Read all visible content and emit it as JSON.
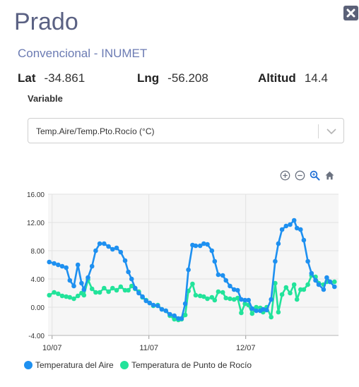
{
  "station": {
    "title": "Prado",
    "subtitle": "Convencional - INUMET",
    "lat_label": "Lat",
    "lat_value": "-34.861",
    "lng_label": "Lng",
    "lng_value": "-56.208",
    "alt_label": "Altitud",
    "alt_value": "14.4"
  },
  "variable": {
    "label": "Variable",
    "selected": "Temp.Aire/Temp.Pto.Rocío (°C)"
  },
  "toolbar": {
    "icons": [
      "zoom-in-icon",
      "zoom-out-icon",
      "magnifier-icon",
      "home-icon"
    ]
  },
  "colors": {
    "air": "#1e90f0",
    "dew": "#22e39a",
    "title": "#5a6183",
    "subtitle": "#6b7bb3"
  },
  "chart_data": {
    "type": "line",
    "title": "",
    "xlabel": "",
    "ylabel": "",
    "ylim": [
      -4,
      16
    ],
    "yticks": [
      "16.00",
      "12.00",
      "8.00",
      "4.00",
      "0.00",
      "-4.00"
    ],
    "xticks": [
      {
        "label": "10/07",
        "x": 0
      },
      {
        "label": "11/07",
        "x": 24
      },
      {
        "label": "12/07",
        "x": 48
      }
    ],
    "xlim": [
      -1,
      71
    ],
    "grid": true,
    "legend": "bottom",
    "series": [
      {
        "name": "Temperatura del Aire",
        "x": [
          -0.7,
          0.5,
          1.5,
          2.5,
          3.5,
          4.4,
          5.4,
          6.4,
          7.3,
          7.9,
          8.9,
          9.9,
          10.8,
          11.8,
          12.9,
          14.0,
          15.0,
          16.0,
          17.0,
          18.1,
          18.9,
          19.7,
          20.6,
          21.5,
          22.4,
          23.3,
          24.2,
          25.1,
          26.2,
          27.2,
          28.2,
          29.2,
          30.3,
          31.3,
          32.1,
          33.0,
          33.8,
          34.8,
          35.6,
          36.7,
          37.6,
          38.5,
          39.6,
          40.3,
          41.2,
          42.3,
          43.1,
          44.1,
          45.1,
          46.0,
          46.9,
          47.8,
          48.7,
          49.6,
          50.6,
          51.6,
          52.3,
          53.2,
          54.3,
          55.3,
          56.1,
          57.0,
          58.0,
          59.0,
          60.0,
          60.7,
          61.6,
          62.4,
          63.4,
          64.3,
          65.3,
          66.1,
          67.3,
          68.1,
          68.9,
          70.0
        ],
        "values": [
          6.4,
          6.2,
          6.0,
          5.8,
          5.6,
          3.8,
          3.0,
          6.0,
          3.4,
          2.5,
          4.2,
          5.8,
          8.0,
          9.0,
          9.0,
          8.6,
          8.2,
          8.4,
          7.8,
          6.6,
          5.0,
          4.0,
          2.7,
          2.0,
          1.5,
          0.9,
          0.6,
          0.3,
          0.2,
          -0.3,
          -0.5,
          -1.0,
          -1.2,
          -1.6,
          -1.6,
          0.5,
          5.3,
          8.8,
          8.7,
          8.7,
          9.0,
          8.9,
          8.0,
          6.5,
          4.6,
          4.5,
          3.8,
          3.0,
          2.5,
          2.4,
          1.1,
          1.0,
          1.0,
          -0.2,
          -0.5,
          -0.5,
          -0.3,
          -0.4,
          1.1,
          6.5,
          9.0,
          11.0,
          11.5,
          11.7,
          12.3,
          11.2,
          11.0,
          9.5,
          6.5,
          4.8,
          3.8,
          3.2,
          2.5,
          4.2,
          3.6,
          2.9
        ]
      },
      {
        "name": "Temperatura de Punto de Rocío",
        "x": [
          -0.7,
          0.5,
          1.5,
          2.5,
          3.5,
          4.4,
          5.4,
          6.4,
          7.3,
          7.9,
          8.9,
          9.9,
          10.8,
          11.8,
          12.9,
          14.0,
          15.0,
          16.0,
          17.0,
          18.1,
          18.9,
          19.7,
          20.6,
          21.5,
          22.4,
          23.3,
          24.2,
          25.1,
          26.2,
          27.2,
          28.2,
          29.2,
          30.3,
          31.3,
          32.1,
          33.0,
          33.8,
          34.8,
          35.6,
          36.7,
          37.6,
          38.5,
          39.6,
          40.3,
          41.2,
          42.3,
          43.1,
          44.1,
          45.1,
          46.0,
          46.9,
          47.8,
          48.7,
          49.6,
          50.6,
          51.6,
          52.3,
          53.2,
          54.3,
          55.3,
          56.1,
          57.0,
          58.0,
          59.0,
          60.0,
          60.7,
          61.6,
          62.4,
          63.4,
          64.3,
          65.3,
          66.1,
          67.3,
          68.1,
          68.9,
          70.0
        ],
        "values": [
          1.7,
          2.1,
          1.9,
          1.6,
          1.5,
          1.4,
          1.2,
          1.6,
          2.0,
          1.7,
          3.9,
          2.6,
          2.1,
          2.1,
          2.7,
          2.2,
          2.7,
          2.4,
          2.9,
          2.4,
          2.4,
          3.0,
          2.6,
          2.2,
          1.4,
          1.0,
          0.6,
          0.2,
          0.3,
          -0.3,
          -0.5,
          -1.2,
          -1.7,
          -1.8,
          -1.7,
          -1.1,
          2.3,
          3.3,
          1.7,
          1.6,
          1.5,
          1.2,
          1.4,
          1.0,
          2.2,
          2.1,
          1.3,
          1.2,
          1.1,
          1.3,
          -0.8,
          0.5,
          0.3,
          -0.9,
          0.0,
          -0.1,
          -0.7,
          0.0,
          -1.4,
          3.4,
          -0.7,
          1.8,
          2.8,
          2.0,
          3.2,
          1.1,
          2.5,
          2.5,
          3.2,
          4.5,
          4.3,
          3.4,
          3.2,
          3.6,
          3.6,
          3.6
        ]
      }
    ]
  }
}
